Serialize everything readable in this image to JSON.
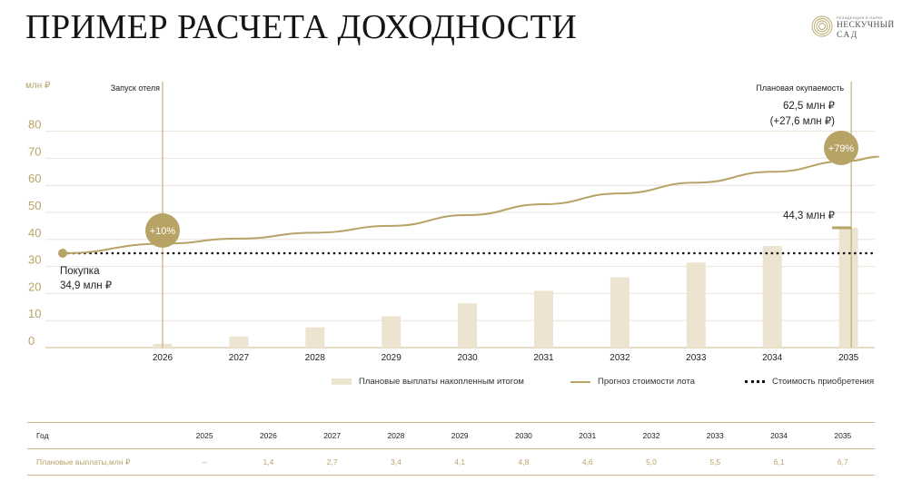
{
  "header": {
    "title": "ПРИМЕР РАСЧЕТА ДОХОДНОСТИ"
  },
  "logo": {
    "tagline": "РЕЗИДЕНЦИЯ В ПАРКЕ",
    "name_line1": "НЕСКУЧНЫЙ",
    "name_line2": "САД"
  },
  "colors": {
    "gold": "#b7a366",
    "bar": "#ece4d1",
    "grid": "#e8e4da",
    "dots": "#111111"
  },
  "chart_data": {
    "type": "bar",
    "y_unit_label": "млн ₽",
    "y_ticks": [
      0,
      10,
      20,
      30,
      40,
      50,
      60,
      70,
      80
    ],
    "ylim": [
      0,
      80
    ],
    "categories": [
      "2026",
      "2027",
      "2028",
      "2029",
      "2030",
      "2031",
      "2032",
      "2033",
      "2034",
      "2035"
    ],
    "series": [
      {
        "name": "Плановые выплаты накопленным итогом",
        "kind": "bar",
        "values": [
          1.4,
          4.1,
          7.5,
          11.6,
          16.4,
          21.0,
          26.0,
          31.5,
          37.6,
          44.3
        ]
      },
      {
        "name": "Прогноз стоимости лота",
        "kind": "line",
        "x": [
          2025,
          2026,
          2027,
          2028,
          2029,
          2030,
          2031,
          2032,
          2033,
          2034,
          2035,
          2035.4
        ],
        "values": [
          34.9,
          38.4,
          40.3,
          42.5,
          45.0,
          49.0,
          53.0,
          57.0,
          61.0,
          65.0,
          69.0,
          70.6
        ]
      },
      {
        "name": "Стоимость приобретения",
        "kind": "dotted",
        "value": 34.9
      }
    ],
    "annotations": {
      "launch": {
        "label": "Запуск отеля",
        "year": "2026",
        "badge": "+10%"
      },
      "payback": {
        "label": "Плановая окупаемость",
        "year": "2035",
        "badge": "+79%",
        "value_line1": "62,5 млн ₽",
        "value_line2": "(+27,6 млн ₽)",
        "bar_label": "44,3 млн ₽"
      },
      "purchase": {
        "line1": "Покупка",
        "line2": "34,9 млн ₽"
      }
    },
    "legend": [
      {
        "label": "Плановые выплаты накопленным итогом",
        "kind": "bar"
      },
      {
        "label": "Прогноз стоимости лота",
        "kind": "line"
      },
      {
        "label": "Стоимость приобретения",
        "kind": "dotted"
      }
    ]
  },
  "table": {
    "header_label": "Год",
    "years": [
      "2025",
      "2026",
      "2027",
      "2028",
      "2029",
      "2030",
      "2031",
      "2032",
      "2033",
      "2034",
      "2035"
    ],
    "row_label": "Плановые выплаты,млн ₽",
    "payments": [
      "–",
      "1,4",
      "2,7",
      "3,4",
      "4,1",
      "4,8",
      "4,6",
      "5,0",
      "5,5",
      "6,1",
      "6,7"
    ]
  }
}
